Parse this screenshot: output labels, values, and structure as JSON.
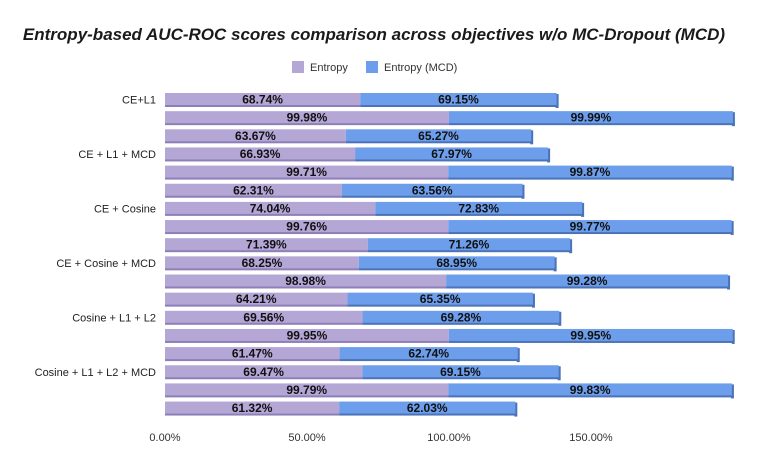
{
  "chart_data": {
    "type": "bar",
    "orientation": "horizontal",
    "stacked": true,
    "title": "Entropy-based AUC-ROC scores comparison across objectives w/o MC-Dropout (MCD)",
    "legend": {
      "placement": "top-center",
      "entries": [
        "Entropy",
        "Entropy (MCD)"
      ]
    },
    "colors": {
      "Entropy": "#b4a7d6",
      "Entropy (MCD)": "#6d9eeb"
    },
    "xlim": [
      0,
      2.0
    ],
    "xticks": [
      0,
      0.5,
      1.0,
      1.5
    ],
    "xtick_labels": [
      "0.00%",
      "50.00%",
      "100.00%",
      "150.00%"
    ],
    "category_labels": [
      "CE+L1",
      "CE + L1 + MCD",
      "CE + Cosine",
      "CE + Cosine + MCD",
      "Cosine + L1 + L2",
      "Cosine + L1 + L2 + MCD"
    ],
    "series": [
      {
        "name": "Entropy",
        "values": [
          0.6874,
          0.9998,
          0.6367,
          0.6693,
          0.9971,
          0.6231,
          0.7404,
          0.9976,
          0.7139,
          0.6825,
          0.9898,
          0.6421,
          0.6956,
          0.9995,
          0.6147,
          0.6947,
          0.9979,
          0.6132
        ],
        "labels": [
          "68.74%",
          "99.98%",
          "63.67%",
          "66.93%",
          "99.71%",
          "62.31%",
          "74.04%",
          "99.76%",
          "71.39%",
          "68.25%",
          "98.98%",
          "64.21%",
          "69.56%",
          "99.95%",
          "61.47%",
          "69.47%",
          "99.79%",
          "61.32%"
        ]
      },
      {
        "name": "Entropy (MCD)",
        "values": [
          0.6915,
          0.9999,
          0.6527,
          0.6797,
          0.9987,
          0.6356,
          0.7283,
          0.9977,
          0.7126,
          0.6895,
          0.9928,
          0.6535,
          0.6928,
          0.9995,
          0.6274,
          0.6915,
          0.9983,
          0.6203
        ],
        "labels": [
          "69.15%",
          "99.99%",
          "65.27%",
          "67.97%",
          "99.87%",
          "63.56%",
          "72.83%",
          "99.77%",
          "71.26%",
          "68.95%",
          "99.28%",
          "65.35%",
          "69.28%",
          "99.95%",
          "62.74%",
          "69.15%",
          "99.83%",
          "62.03%"
        ]
      }
    ],
    "grid": false
  }
}
